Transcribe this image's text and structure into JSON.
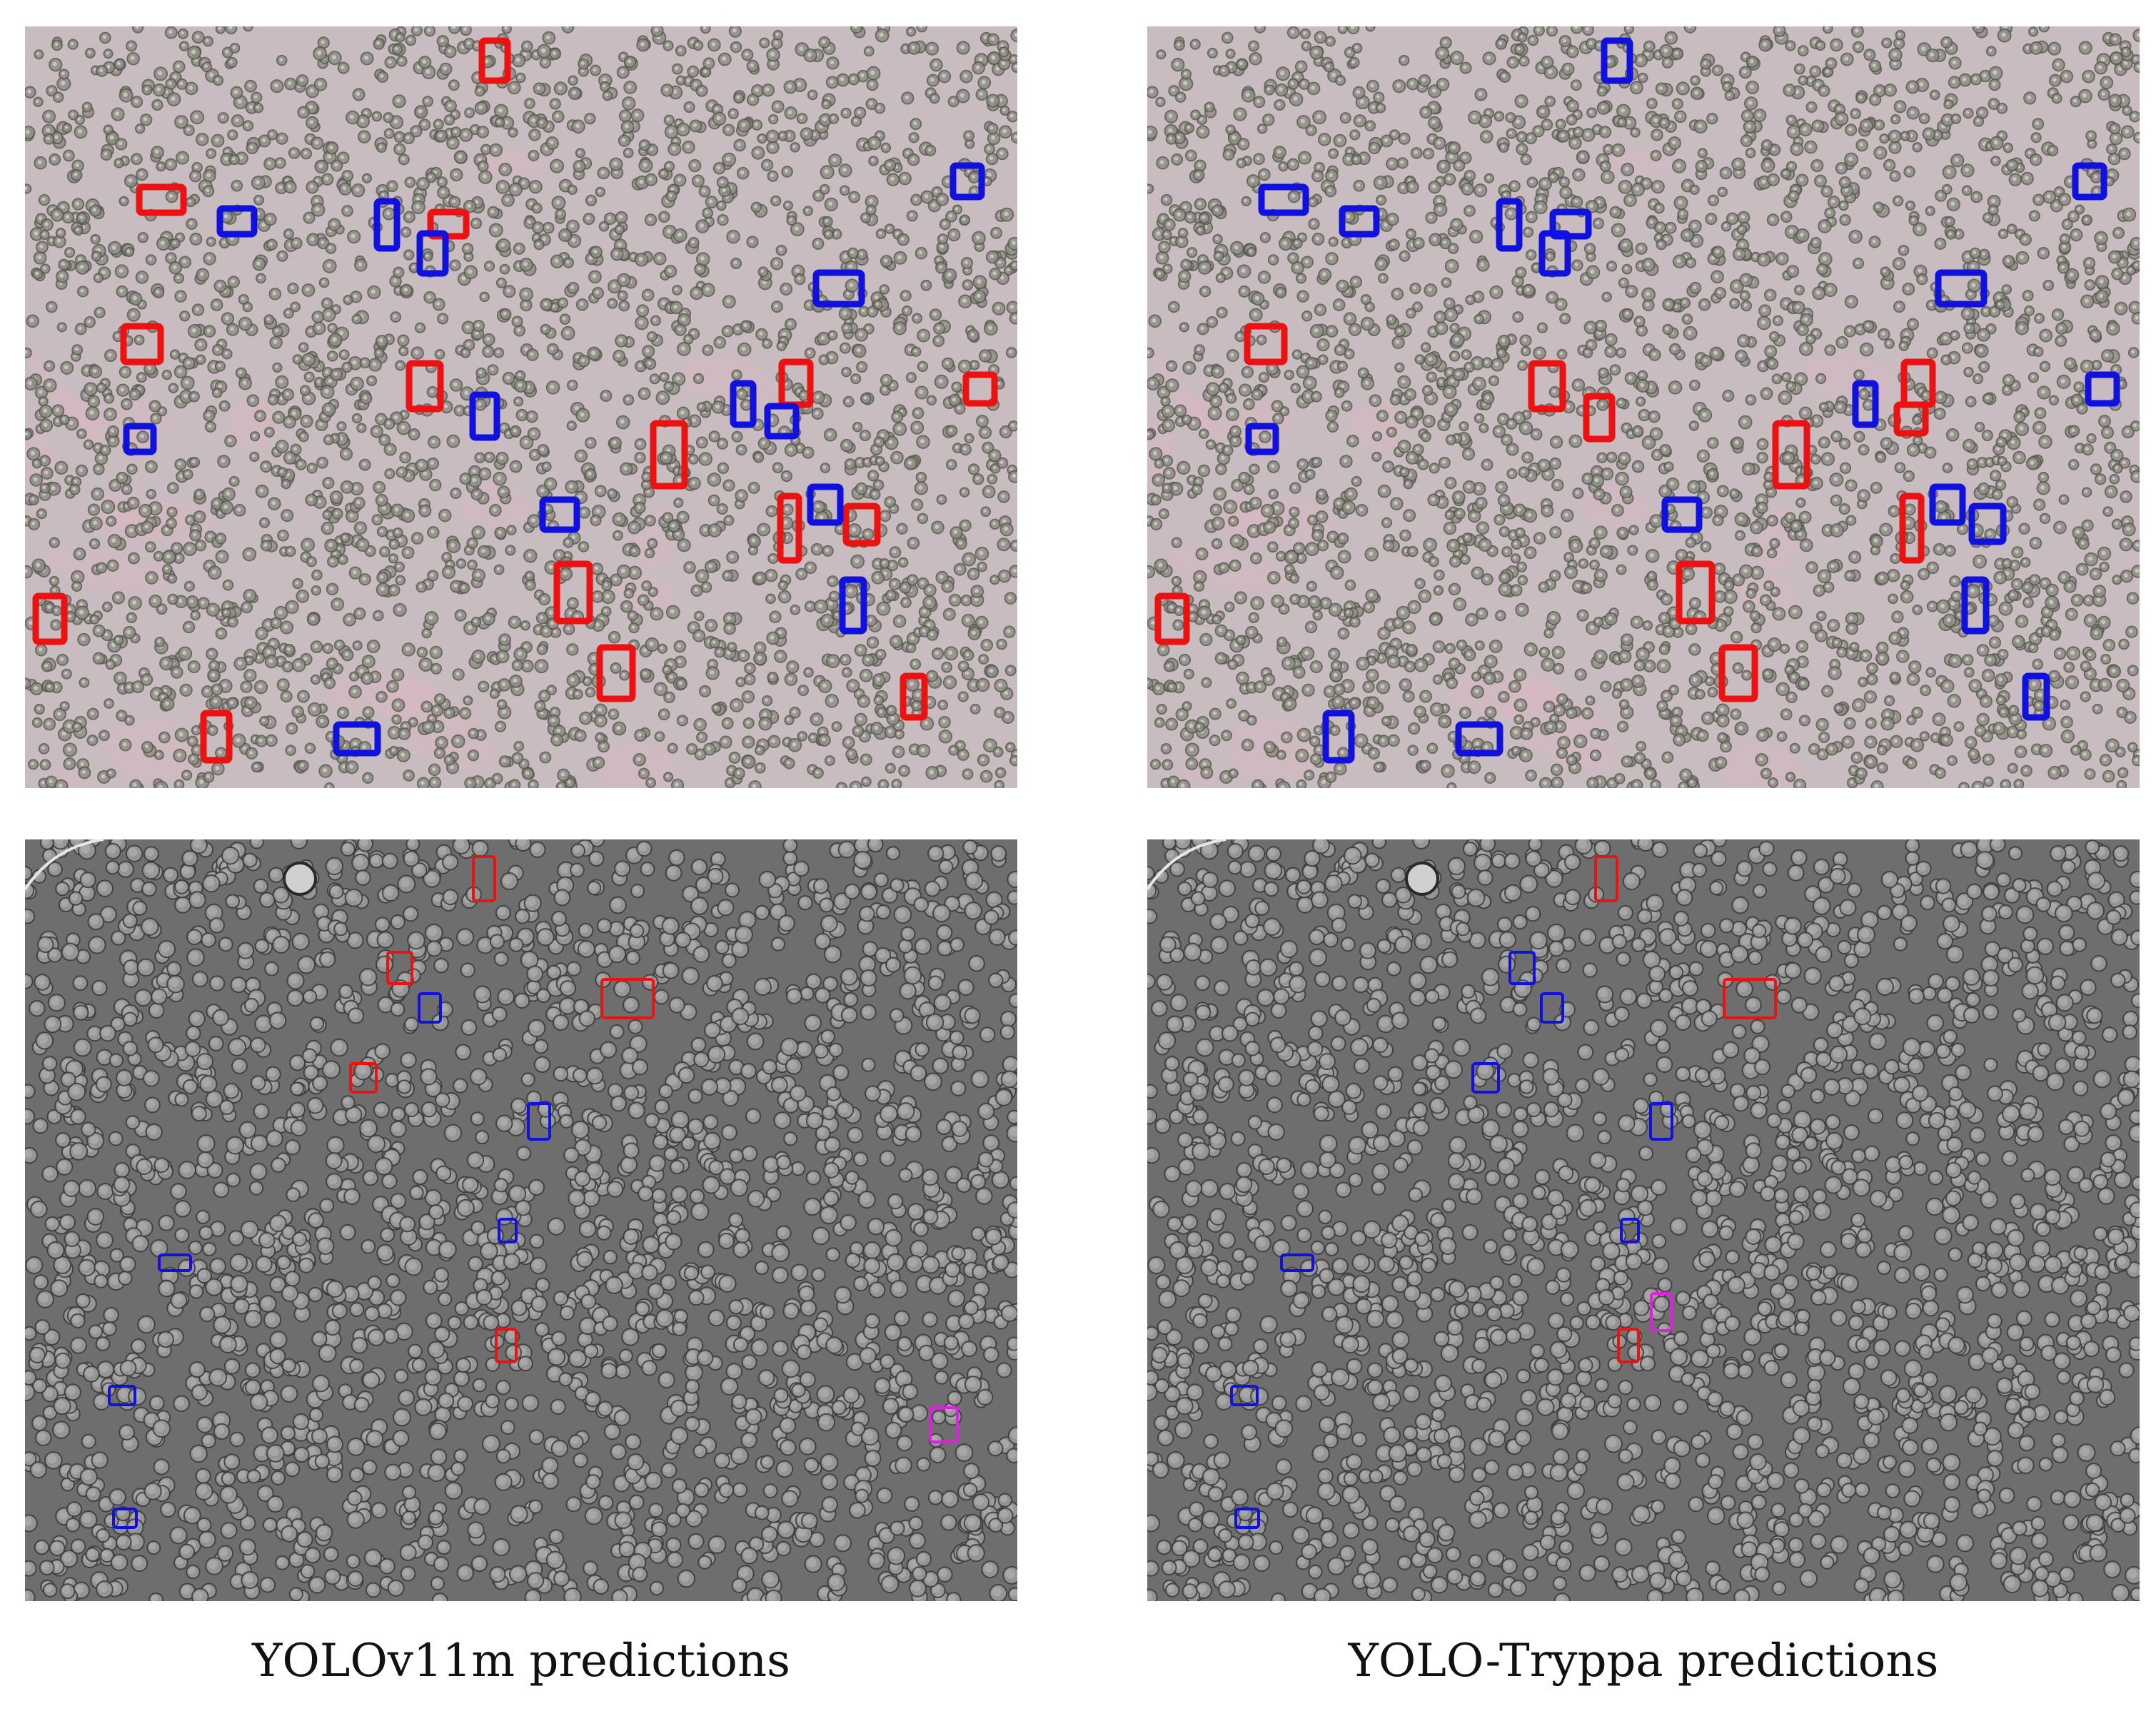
{
  "captions": {
    "left": "YOLOv11m predictions",
    "right": "YOLO-Tryppa predictions"
  },
  "colors": {
    "class_red": "#ee1111",
    "class_blue": "#1010e0",
    "class_magenta": "#e020e0",
    "phase_contrast_bg": "#c8bcc0",
    "dic_bg": "#6e6e6e"
  },
  "panels": {
    "top_left": {
      "image": "phase-contrast blood smear",
      "model": "YOLOv11m"
    },
    "top_right": {
      "image": "phase-contrast blood smear",
      "model": "YOLO-Tryppa"
    },
    "bottom_left": {
      "image": "DIC blood smear",
      "model": "YOLOv11m"
    },
    "bottom_right": {
      "image": "DIC blood smear",
      "model": "YOLO-Tryppa"
    }
  }
}
